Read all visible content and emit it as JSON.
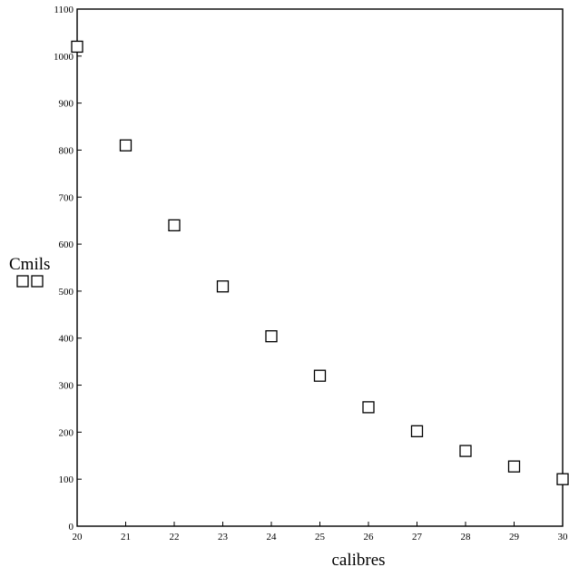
{
  "chart_data": {
    "type": "scatter",
    "xlabel": "calibres",
    "ylabel": "Cmils",
    "x": [
      20,
      21,
      22,
      23,
      24,
      25,
      26,
      27,
      28,
      29,
      30
    ],
    "y": [
      1020,
      810,
      640,
      510,
      404,
      320,
      253,
      202,
      160,
      127,
      100
    ],
    "xlim": [
      20,
      30
    ],
    "ylim": [
      0,
      1100
    ],
    "x_ticks": [
      "20",
      "21",
      "22",
      "23",
      "24",
      "25",
      "26",
      "27",
      "28",
      "29",
      "30"
    ],
    "y_ticks": [
      "0",
      "100",
      "200",
      "300",
      "400",
      "500",
      "600",
      "700",
      "800",
      "900",
      "1000",
      "1100"
    ],
    "marker": "open-square",
    "grid": false,
    "legend": "left, below y-axis label",
    "legend_markers": 2
  }
}
